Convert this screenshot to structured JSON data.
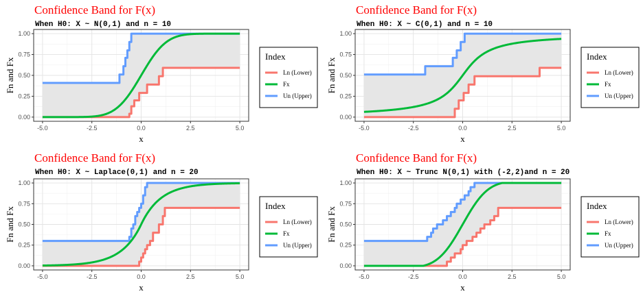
{
  "chart_data": [
    {
      "type": "line",
      "title": "Confidence Band for F(x)",
      "subtitle": "When H0: X ~ N(0,1) and n = 10",
      "xlabel": "x",
      "ylabel": "Fn and Fx",
      "xlim": [
        -5,
        5
      ],
      "ylim": [
        0,
        1
      ],
      "x_ticks": [
        "-5.0",
        "-2.5",
        "0.0",
        "2.5",
        "5.0"
      ],
      "y_ticks": [
        "0.00",
        "0.25",
        "0.50",
        "0.75",
        "1.00"
      ],
      "grid": true,
      "band_fill": "#e6e6e6",
      "legend": {
        "title": "Index",
        "position": "right"
      },
      "series": [
        {
          "name": "Ln (Lower)",
          "color": "#f8766d",
          "kind": "step",
          "x": [
            -5,
            -0.7,
            -0.6,
            -0.5,
            -0.35,
            -0.1,
            0.3,
            0.9,
            1.1,
            5
          ],
          "y": [
            0,
            0,
            0.04,
            0.13,
            0.2,
            0.29,
            0.39,
            0.49,
            0.59,
            0.59
          ]
        },
        {
          "name": "Fx",
          "color": "#00ba38",
          "kind": "cdf",
          "dist": "normal"
        },
        {
          "name": "Un (Upper)",
          "color": "#619cff",
          "kind": "step",
          "x": [
            -5,
            -1.5,
            -1.1,
            -0.9,
            -0.8,
            -0.7,
            -0.6,
            -0.5,
            0.3,
            5
          ],
          "y": [
            0.41,
            0.41,
            0.51,
            0.61,
            0.71,
            0.8,
            0.9,
            1.0,
            1.0,
            1.0
          ]
        }
      ]
    },
    {
      "type": "line",
      "title": "Confidence Band for F(x)",
      "subtitle": "When H0: X ~ C(0,1) and n = 10",
      "xlabel": "x",
      "ylabel": "Fn and Fx",
      "xlim": [
        -5,
        5
      ],
      "ylim": [
        0,
        1
      ],
      "x_ticks": [
        "-5.0",
        "-2.5",
        "0.0",
        "2.5",
        "5.0"
      ],
      "y_ticks": [
        "0.00",
        "0.25",
        "0.50",
        "0.75",
        "1.00"
      ],
      "grid": true,
      "band_fill": "#e6e6e6",
      "legend": {
        "title": "Index",
        "position": "right"
      },
      "series": [
        {
          "name": "Ln (Lower)",
          "color": "#f8766d",
          "kind": "step",
          "x": [
            -5,
            -0.6,
            -0.4,
            -0.2,
            0.05,
            0.3,
            0.6,
            3.9,
            5
          ],
          "y": [
            0,
            0,
            0.1,
            0.2,
            0.29,
            0.39,
            0.49,
            0.59,
            0.59
          ]
        },
        {
          "name": "Fx",
          "color": "#00ba38",
          "kind": "cdf",
          "dist": "cauchy"
        },
        {
          "name": "Un (Upper)",
          "color": "#619cff",
          "kind": "step",
          "x": [
            -5,
            -2.5,
            -1.9,
            -0.5,
            -0.3,
            -0.1,
            0.1,
            5
          ],
          "y": [
            0.51,
            0.51,
            0.61,
            0.71,
            0.8,
            0.9,
            1.0,
            1.0
          ]
        }
      ]
    },
    {
      "type": "line",
      "title": "Confidence Band for F(x)",
      "subtitle": "When H0: X ~ Laplace(0,1) and n = 20",
      "xlabel": "x",
      "ylabel": "Fn and Fx",
      "xlim": [
        -5,
        5
      ],
      "ylim": [
        0,
        1
      ],
      "x_ticks": [
        "-5.0",
        "-2.5",
        "0.0",
        "2.5",
        "5.0"
      ],
      "y_ticks": [
        "0.00",
        "0.25",
        "0.50",
        "0.75",
        "1.00"
      ],
      "grid": true,
      "band_fill": "#e6e6e6",
      "legend": {
        "title": "Index",
        "position": "right"
      },
      "series": [
        {
          "name": "Ln (Lower)",
          "color": "#f8766d",
          "kind": "step",
          "x": [
            -5,
            -0.2,
            -0.1,
            0.0,
            0.1,
            0.2,
            0.3,
            0.45,
            0.6,
            0.9,
            1.1,
            1.2,
            5
          ],
          "y": [
            0,
            0,
            0.05,
            0.1,
            0.15,
            0.2,
            0.25,
            0.3,
            0.4,
            0.5,
            0.6,
            0.7,
            0.7
          ]
        },
        {
          "name": "Fx",
          "color": "#00ba38",
          "kind": "cdf",
          "dist": "laplace"
        },
        {
          "name": "Un (Upper)",
          "color": "#619cff",
          "kind": "step",
          "x": [
            -5,
            -2.1,
            -0.6,
            -0.5,
            -0.4,
            -0.3,
            -0.2,
            -0.1,
            0.0,
            0.1,
            0.2,
            0.3,
            5
          ],
          "y": [
            0.3,
            0.3,
            0.35,
            0.45,
            0.5,
            0.6,
            0.65,
            0.7,
            0.75,
            0.85,
            0.95,
            1.0,
            1.0
          ]
        }
      ]
    },
    {
      "type": "line",
      "title": "Confidence Band for F(x)",
      "subtitle": "When H0: X ~ Trunc N(0,1) with (-2,2)and n = 20",
      "xlabel": "x",
      "ylabel": "Fn and Fx",
      "xlim": [
        -5,
        5
      ],
      "ylim": [
        0,
        1
      ],
      "x_ticks": [
        "-5.0",
        "-2.5",
        "0.0",
        "2.5",
        "5.0"
      ],
      "y_ticks": [
        "0.00",
        "0.25",
        "0.50",
        "0.75",
        "1.00"
      ],
      "grid": true,
      "band_fill": "#e6e6e6",
      "legend": {
        "title": "Index",
        "position": "right"
      },
      "series": [
        {
          "name": "Ln (Lower)",
          "color": "#f8766d",
          "kind": "step",
          "x": [
            -5,
            -0.9,
            -0.8,
            -0.6,
            -0.4,
            -0.1,
            0.0,
            0.2,
            0.5,
            0.7,
            0.9,
            1.1,
            1.4,
            1.6,
            1.8,
            5
          ],
          "y": [
            0,
            0,
            0.05,
            0.1,
            0.15,
            0.2,
            0.25,
            0.3,
            0.35,
            0.4,
            0.45,
            0.5,
            0.55,
            0.6,
            0.7,
            0.7
          ]
        },
        {
          "name": "Fx",
          "color": "#00ba38",
          "kind": "cdf",
          "dist": "truncnormal",
          "a": -2,
          "b": 2
        },
        {
          "name": "Un (Upper)",
          "color": "#619cff",
          "kind": "step",
          "x": [
            -5,
            -2.0,
            -1.8,
            -1.6,
            -1.5,
            -1.3,
            -1.0,
            -0.8,
            -0.6,
            -0.4,
            -0.3,
            -0.1,
            0.1,
            0.3,
            0.4,
            0.6,
            5
          ],
          "y": [
            0.3,
            0.3,
            0.35,
            0.4,
            0.45,
            0.5,
            0.55,
            0.6,
            0.65,
            0.7,
            0.75,
            0.8,
            0.85,
            0.9,
            0.95,
            1.0,
            1.0
          ]
        }
      ]
    }
  ]
}
